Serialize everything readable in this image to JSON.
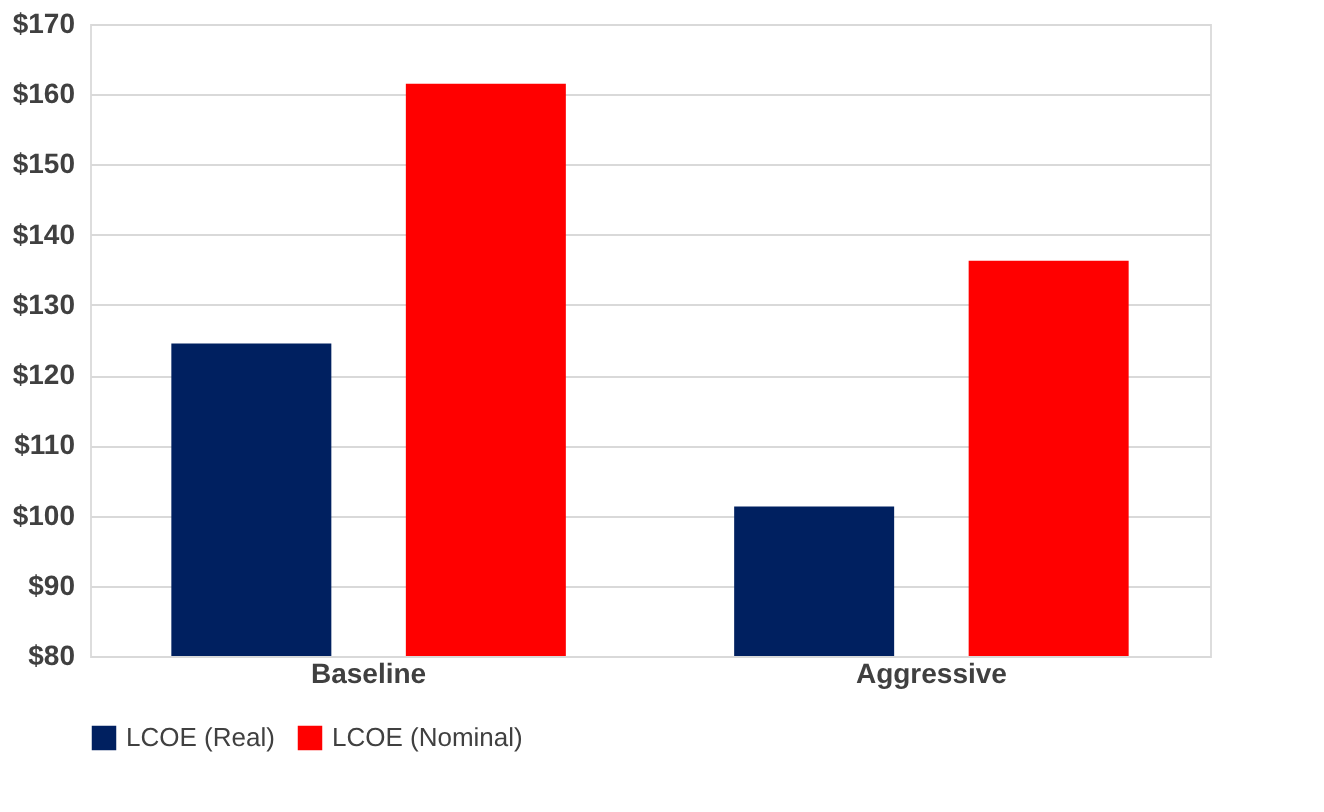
{
  "chart_data": {
    "type": "bar",
    "categories": [
      "Baseline",
      "Aggressive"
    ],
    "series": [
      {
        "name": "LCOE (Real)",
        "color": "#002060",
        "values": [
          124.5,
          101.3
        ]
      },
      {
        "name": "LCOE (Nominal)",
        "color": "#ff0000",
        "values": [
          161.5,
          136.3
        ]
      }
    ],
    "ylim": [
      80,
      170
    ],
    "yticks": [
      {
        "value": 80,
        "label": "$80"
      },
      {
        "value": 90,
        "label": "$90"
      },
      {
        "value": 100,
        "label": "$100"
      },
      {
        "value": 110,
        "label": "$110"
      },
      {
        "value": 120,
        "label": "$120"
      },
      {
        "value": 130,
        "label": "$130"
      },
      {
        "value": 140,
        "label": "$140"
      },
      {
        "value": 150,
        "label": "$150"
      },
      {
        "value": 160,
        "label": "$160"
      },
      {
        "value": 170,
        "label": "$170"
      }
    ],
    "grid": "y",
    "legend": "bottom"
  }
}
